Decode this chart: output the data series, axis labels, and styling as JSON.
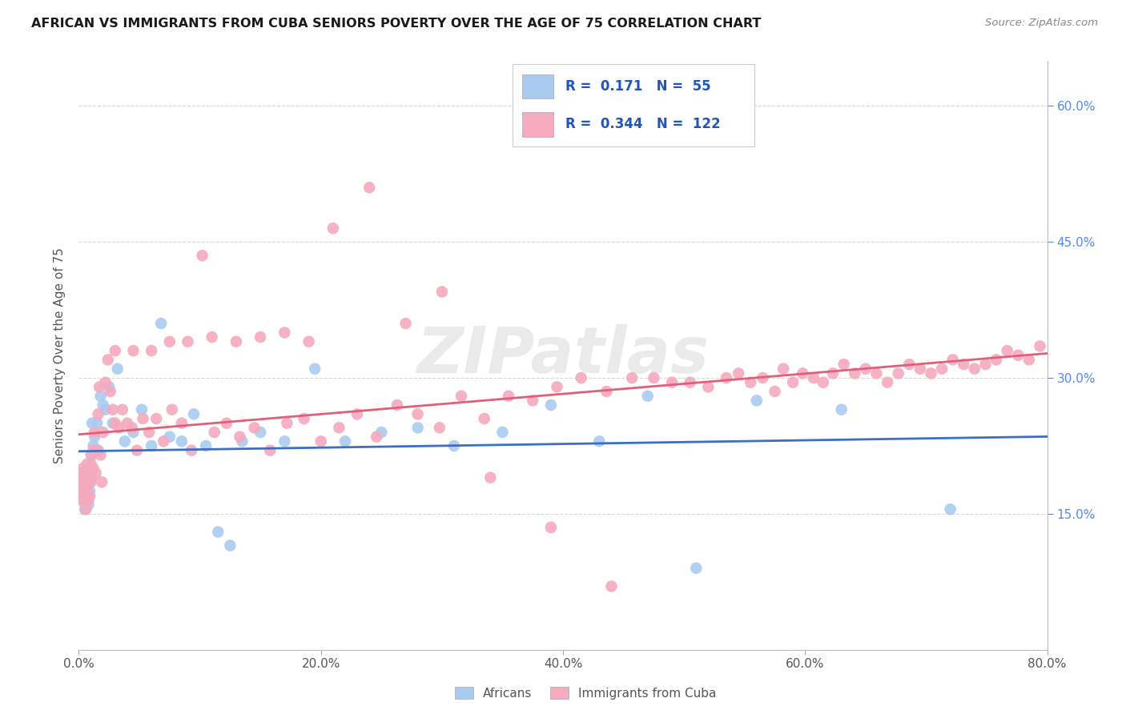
{
  "title": "AFRICAN VS IMMIGRANTS FROM CUBA SENIORS POVERTY OVER THE AGE OF 75 CORRELATION CHART",
  "source": "Source: ZipAtlas.com",
  "ylabel": "Seniors Poverty Over the Age of 75",
  "xlim": [
    0.0,
    0.8
  ],
  "ylim": [
    0.0,
    0.65
  ],
  "xtick_vals": [
    0.0,
    0.2,
    0.4,
    0.6,
    0.8
  ],
  "xtick_labels": [
    "0.0%",
    "20.0%",
    "40.0%",
    "60.0%",
    "80.0%"
  ],
  "ytick_vals": [
    0.15,
    0.3,
    0.45,
    0.6
  ],
  "ytick_labels": [
    "15.0%",
    "30.0%",
    "45.0%",
    "60.0%"
  ],
  "series": [
    {
      "name": "Africans",
      "R": 0.171,
      "N": 55,
      "dot_color": "#aacbf0",
      "line_color": "#3a6fc4",
      "x": [
        0.001,
        0.002,
        0.003,
        0.003,
        0.004,
        0.004,
        0.005,
        0.005,
        0.006,
        0.006,
        0.007,
        0.007,
        0.008,
        0.008,
        0.009,
        0.01,
        0.01,
        0.011,
        0.012,
        0.013,
        0.015,
        0.016,
        0.018,
        0.02,
        0.022,
        0.025,
        0.028,
        0.032,
        0.038,
        0.045,
        0.052,
        0.06,
        0.068,
        0.075,
        0.085,
        0.095,
        0.105,
        0.115,
        0.125,
        0.135,
        0.15,
        0.17,
        0.195,
        0.22,
        0.25,
        0.28,
        0.31,
        0.35,
        0.39,
        0.43,
        0.47,
        0.51,
        0.56,
        0.63,
        0.72
      ],
      "y": [
        0.19,
        0.17,
        0.185,
        0.165,
        0.175,
        0.195,
        0.155,
        0.18,
        0.165,
        0.185,
        0.175,
        0.195,
        0.16,
        0.185,
        0.175,
        0.2,
        0.215,
        0.25,
        0.225,
        0.235,
        0.25,
        0.22,
        0.28,
        0.27,
        0.265,
        0.29,
        0.25,
        0.31,
        0.23,
        0.24,
        0.265,
        0.225,
        0.36,
        0.235,
        0.23,
        0.26,
        0.225,
        0.13,
        0.115,
        0.23,
        0.24,
        0.23,
        0.31,
        0.23,
        0.24,
        0.245,
        0.225,
        0.24,
        0.27,
        0.23,
        0.28,
        0.09,
        0.275,
        0.265,
        0.155
      ]
    },
    {
      "name": "Immigrants from Cuba",
      "R": 0.344,
      "N": 122,
      "dot_color": "#f5aabe",
      "line_color": "#e0607a",
      "x": [
        0.001,
        0.002,
        0.002,
        0.003,
        0.003,
        0.004,
        0.004,
        0.005,
        0.005,
        0.006,
        0.006,
        0.007,
        0.007,
        0.008,
        0.008,
        0.009,
        0.009,
        0.01,
        0.01,
        0.011,
        0.011,
        0.012,
        0.012,
        0.013,
        0.014,
        0.015,
        0.016,
        0.017,
        0.018,
        0.019,
        0.02,
        0.022,
        0.024,
        0.026,
        0.028,
        0.03,
        0.033,
        0.036,
        0.04,
        0.044,
        0.048,
        0.053,
        0.058,
        0.064,
        0.07,
        0.077,
        0.085,
        0.093,
        0.102,
        0.112,
        0.122,
        0.133,
        0.145,
        0.158,
        0.172,
        0.186,
        0.2,
        0.215,
        0.23,
        0.246,
        0.263,
        0.28,
        0.298,
        0.316,
        0.335,
        0.355,
        0.375,
        0.395,
        0.415,
        0.436,
        0.457,
        0.475,
        0.49,
        0.505,
        0.52,
        0.535,
        0.545,
        0.555,
        0.565,
        0.575,
        0.582,
        0.59,
        0.598,
        0.607,
        0.615,
        0.623,
        0.632,
        0.641,
        0.65,
        0.659,
        0.668,
        0.677,
        0.686,
        0.695,
        0.704,
        0.713,
        0.722,
        0.731,
        0.74,
        0.749,
        0.758,
        0.767,
        0.776,
        0.785,
        0.794,
        0.03,
        0.045,
        0.06,
        0.075,
        0.09,
        0.11,
        0.13,
        0.15,
        0.17,
        0.19,
        0.21,
        0.24,
        0.27,
        0.3,
        0.34,
        0.39,
        0.44
      ],
      "y": [
        0.18,
        0.165,
        0.195,
        0.175,
        0.2,
        0.185,
        0.165,
        0.19,
        0.175,
        0.185,
        0.155,
        0.205,
        0.18,
        0.19,
        0.165,
        0.2,
        0.17,
        0.185,
        0.205,
        0.19,
        0.215,
        0.2,
        0.22,
        0.24,
        0.195,
        0.22,
        0.26,
        0.29,
        0.215,
        0.185,
        0.24,
        0.295,
        0.32,
        0.285,
        0.265,
        0.25,
        0.245,
        0.265,
        0.25,
        0.245,
        0.22,
        0.255,
        0.24,
        0.255,
        0.23,
        0.265,
        0.25,
        0.22,
        0.435,
        0.24,
        0.25,
        0.235,
        0.245,
        0.22,
        0.25,
        0.255,
        0.23,
        0.245,
        0.26,
        0.235,
        0.27,
        0.26,
        0.245,
        0.28,
        0.255,
        0.28,
        0.275,
        0.29,
        0.3,
        0.285,
        0.3,
        0.3,
        0.295,
        0.295,
        0.29,
        0.3,
        0.305,
        0.295,
        0.3,
        0.285,
        0.31,
        0.295,
        0.305,
        0.3,
        0.295,
        0.305,
        0.315,
        0.305,
        0.31,
        0.305,
        0.295,
        0.305,
        0.315,
        0.31,
        0.305,
        0.31,
        0.32,
        0.315,
        0.31,
        0.315,
        0.32,
        0.33,
        0.325,
        0.32,
        0.335,
        0.33,
        0.33,
        0.33,
        0.34,
        0.34,
        0.345,
        0.34,
        0.345,
        0.35,
        0.34,
        0.465,
        0.51,
        0.36,
        0.395,
        0.19,
        0.135,
        0.07
      ]
    }
  ],
  "watermark": "ZIPatlas",
  "bg_color": "#ffffff",
  "grid_color": "#d8d8d8",
  "right_tick_color": "#5588ee",
  "title_fontsize": 11.5,
  "source_fontsize": 9.5,
  "legend_fontsize": 12,
  "legend_R_color": "#2255bb",
  "axis_label_color": "#555555",
  "tick_label_color": "#555555"
}
